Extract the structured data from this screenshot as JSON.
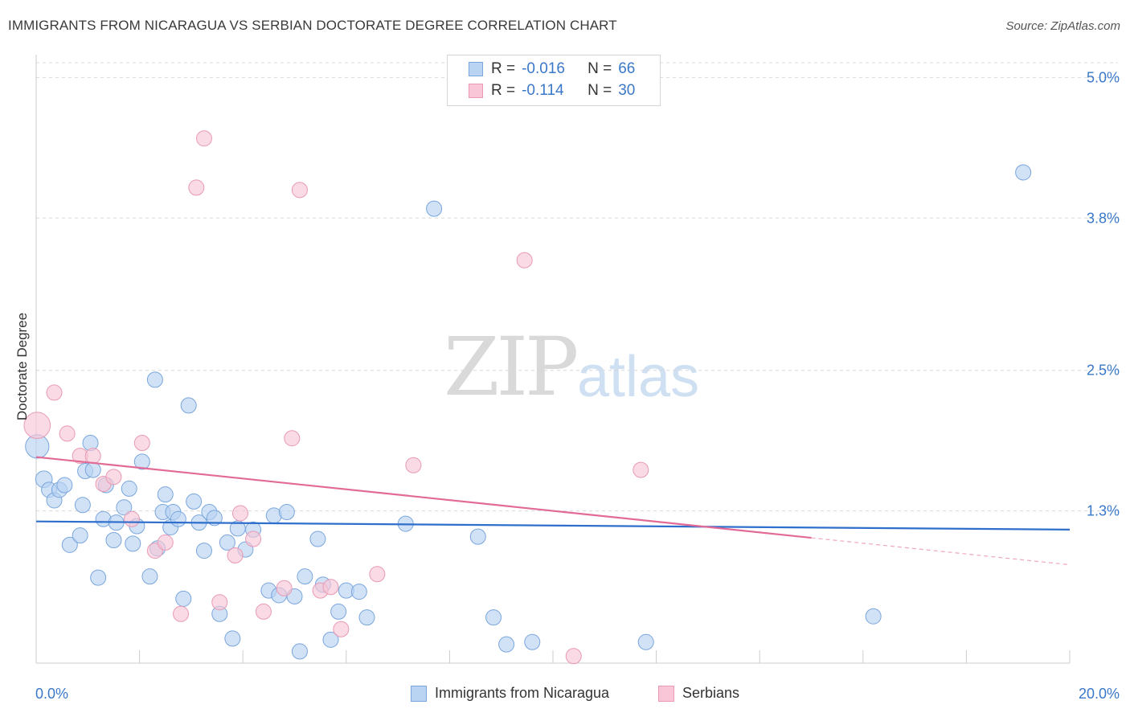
{
  "header": {
    "title": "IMMIGRANTS FROM NICARAGUA VS SERBIAN DOCTORATE DEGREE CORRELATION CHART",
    "source": "Source: ZipAtlas.com"
  },
  "watermark": {
    "zip": "ZIP",
    "atlas": "atlas"
  },
  "legend_top": {
    "rows": [
      {
        "r_label": "R =",
        "r_value": "-0.016",
        "n_label": "N =",
        "n_value": "66"
      },
      {
        "r_label": "R =",
        "r_value": "-0.114",
        "n_label": "N =",
        "n_value": "30"
      }
    ]
  },
  "legend_bottom": {
    "items": [
      {
        "label": "Immigrants from Nicaragua"
      },
      {
        "label": "Serbians"
      }
    ]
  },
  "colors": {
    "blue_fill": "#b9d3f3",
    "blue_stroke": "#7aa6dc",
    "blue_line": "#2f6fcc",
    "pink_fill": "#f8c6d6",
    "pink_stroke": "#e89ab4",
    "pink_line": "#e26a96",
    "grid": "#d8d8d8",
    "axis_text": "#3a78c9"
  },
  "chart_data": {
    "type": "scatter",
    "title": "IMMIGRANTS FROM NICARAGUA VS SERBIAN DOCTORATE DEGREE CORRELATION CHART",
    "xlabel": "",
    "ylabel": "Doctorate Degree",
    "xlim": [
      0,
      20
    ],
    "ylim": [
      0,
      5.25
    ],
    "x_tick_labels": [
      "0.0%",
      "20.0%"
    ],
    "y_ticks": [
      1.3,
      2.5,
      3.8,
      5.0
    ],
    "y_tick_labels": [
      "1.3%",
      "2.5%",
      "3.8%",
      "5.0%"
    ],
    "grid": true,
    "series": [
      {
        "name": "Immigrants from Nicaragua",
        "color": "blue",
        "trend": {
          "x": [
            0,
            20
          ],
          "y": [
            1.21,
            1.14
          ],
          "solid_to": 20
        },
        "points": [
          [
            0.02,
            1.85,
            16
          ],
          [
            0.15,
            1.57,
            11
          ],
          [
            0.25,
            1.48,
            10
          ],
          [
            0.35,
            1.39,
            10
          ],
          [
            0.45,
            1.48,
            10
          ],
          [
            0.55,
            1.52,
            10
          ],
          [
            0.65,
            1.01,
            10
          ],
          [
            0.85,
            1.09,
            10
          ],
          [
            0.9,
            1.35,
            10
          ],
          [
            0.95,
            1.64,
            10
          ],
          [
            1.05,
            1.88,
            10
          ],
          [
            1.1,
            1.65,
            10
          ],
          [
            1.2,
            0.73,
            10
          ],
          [
            1.3,
            1.23,
            10
          ],
          [
            1.35,
            1.52,
            10
          ],
          [
            1.5,
            1.05,
            10
          ],
          [
            1.55,
            1.2,
            10
          ],
          [
            1.7,
            1.33,
            10
          ],
          [
            1.8,
            1.49,
            10
          ],
          [
            1.87,
            1.02,
            10
          ],
          [
            1.95,
            1.17,
            10
          ],
          [
            2.05,
            1.72,
            10
          ],
          [
            2.2,
            0.74,
            10
          ],
          [
            2.3,
            2.42,
            10
          ],
          [
            2.35,
            0.98,
            10
          ],
          [
            2.45,
            1.29,
            10
          ],
          [
            2.5,
            1.44,
            10
          ],
          [
            2.6,
            1.16,
            10
          ],
          [
            2.65,
            1.29,
            10
          ],
          [
            2.75,
            1.23,
            10
          ],
          [
            2.85,
            0.55,
            10
          ],
          [
            2.95,
            2.2,
            10
          ],
          [
            3.05,
            1.38,
            10
          ],
          [
            3.15,
            1.2,
            10
          ],
          [
            3.25,
            0.96,
            10
          ],
          [
            3.35,
            1.29,
            10
          ],
          [
            3.45,
            1.24,
            10
          ],
          [
            3.55,
            0.42,
            10
          ],
          [
            3.7,
            1.03,
            10
          ],
          [
            3.8,
            0.21,
            10
          ],
          [
            3.9,
            1.15,
            10
          ],
          [
            4.05,
            0.97,
            10
          ],
          [
            4.2,
            1.14,
            10
          ],
          [
            4.5,
            0.62,
            10
          ],
          [
            4.6,
            1.26,
            10
          ],
          [
            4.7,
            0.58,
            10
          ],
          [
            4.85,
            1.29,
            10
          ],
          [
            5.0,
            0.57,
            10
          ],
          [
            5.1,
            0.1,
            10
          ],
          [
            5.2,
            0.74,
            10
          ],
          [
            5.45,
            1.06,
            10
          ],
          [
            5.55,
            0.67,
            10
          ],
          [
            5.7,
            0.2,
            10
          ],
          [
            5.85,
            0.44,
            10
          ],
          [
            6.0,
            0.62,
            10
          ],
          [
            6.25,
            0.61,
            10
          ],
          [
            6.4,
            0.39,
            10
          ],
          [
            7.15,
            1.19,
            10
          ],
          [
            7.7,
            3.88,
            10
          ],
          [
            8.55,
            1.08,
            10
          ],
          [
            8.85,
            0.39,
            10
          ],
          [
            9.1,
            0.16,
            10
          ],
          [
            9.6,
            0.18,
            10
          ],
          [
            11.8,
            0.18,
            10
          ],
          [
            16.2,
            0.4,
            10
          ],
          [
            19.1,
            4.19,
            10
          ]
        ]
      },
      {
        "name": "Serbians",
        "color": "pink",
        "trend": {
          "x": [
            0,
            20
          ],
          "y": [
            1.76,
            0.84
          ],
          "solid_to": 15.0
        },
        "points": [
          [
            0.02,
            2.03,
            18
          ],
          [
            0.35,
            2.31,
            10
          ],
          [
            0.6,
            1.96,
            10
          ],
          [
            0.85,
            1.77,
            10
          ],
          [
            1.1,
            1.77,
            10
          ],
          [
            1.3,
            1.53,
            10
          ],
          [
            1.5,
            1.59,
            10
          ],
          [
            1.85,
            1.23,
            10
          ],
          [
            2.05,
            1.88,
            10
          ],
          [
            2.3,
            0.96,
            10
          ],
          [
            2.5,
            1.03,
            10
          ],
          [
            2.8,
            0.42,
            10
          ],
          [
            3.1,
            4.06,
            10
          ],
          [
            3.25,
            4.48,
            10
          ],
          [
            3.55,
            0.52,
            10
          ],
          [
            3.85,
            0.92,
            10
          ],
          [
            3.95,
            1.28,
            10
          ],
          [
            4.2,
            1.06,
            10
          ],
          [
            4.4,
            0.44,
            10
          ],
          [
            4.8,
            0.64,
            10
          ],
          [
            4.95,
            1.92,
            10
          ],
          [
            5.1,
            4.04,
            10
          ],
          [
            5.5,
            0.62,
            10
          ],
          [
            5.7,
            0.65,
            10
          ],
          [
            5.9,
            0.29,
            10
          ],
          [
            6.6,
            0.76,
            10
          ],
          [
            7.3,
            1.69,
            10
          ],
          [
            9.45,
            3.44,
            10
          ],
          [
            10.4,
            0.06,
            10
          ],
          [
            11.7,
            1.65,
            10
          ]
        ]
      }
    ]
  }
}
